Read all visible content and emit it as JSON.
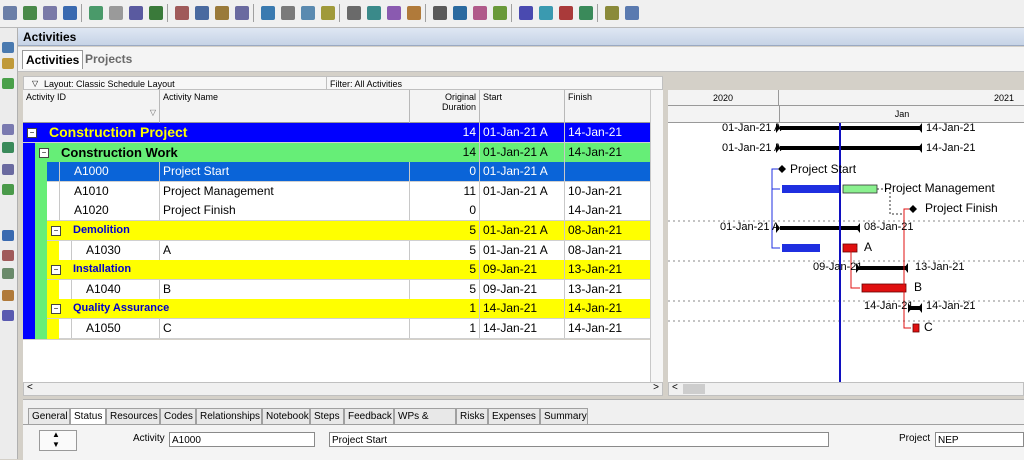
{
  "window": {
    "title": "Activities"
  },
  "view_tabs": [
    "Activities",
    "Projects"
  ],
  "layout_label": "Layout: Classic Schedule Layout",
  "filter_label": "Filter: All Activities",
  "columns": {
    "activity_id": "Activity ID",
    "activity_name": "Activity Name",
    "duration_1": "Original",
    "duration_2": "Duration",
    "start": "Start",
    "finish": "Finish"
  },
  "gantt_header": {
    "year_a": "2020",
    "year_b": "2021",
    "month": "Jan"
  },
  "rows": [
    {
      "kind": "wbs0",
      "name": "Construction Project",
      "duration": "14",
      "start": "01-Jan-21 A",
      "finish": "14-Jan-21"
    },
    {
      "kind": "wbs1",
      "name": "Construction Work",
      "duration": "14",
      "start": "01-Jan-21 A",
      "finish": "14-Jan-21"
    },
    {
      "kind": "act-sel",
      "id": "A1000",
      "name": "Project Start",
      "duration": "0",
      "start": "01-Jan-21 A",
      "finish": ""
    },
    {
      "kind": "act",
      "id": "A1010",
      "name": "Project Management",
      "duration": "11",
      "start": "01-Jan-21 A",
      "finish": "10-Jan-21"
    },
    {
      "kind": "act",
      "id": "A1020",
      "name": "Project Finish",
      "duration": "0",
      "start": "",
      "finish": "14-Jan-21"
    },
    {
      "kind": "wbs2",
      "name": "Demolition",
      "duration": "5",
      "start": "01-Jan-21 A",
      "finish": "08-Jan-21"
    },
    {
      "kind": "act2",
      "id": "A1030",
      "name": "A",
      "duration": "5",
      "start": "01-Jan-21 A",
      "finish": "08-Jan-21"
    },
    {
      "kind": "wbs2",
      "name": "Installation",
      "duration": "5",
      "start": "09-Jan-21",
      "finish": "13-Jan-21"
    },
    {
      "kind": "act2",
      "id": "A1040",
      "name": "B",
      "duration": "5",
      "start": "09-Jan-21",
      "finish": "13-Jan-21"
    },
    {
      "kind": "wbs2",
      "name": "Quality Assurance",
      "duration": "1",
      "start": "14-Jan-21",
      "finish": "14-Jan-21"
    },
    {
      "kind": "act2",
      "id": "A1050",
      "name": "C",
      "duration": "1",
      "start": "14-Jan-21",
      "finish": "14-Jan-21"
    }
  ],
  "gantt_labels": {
    "r0_left": "01-Jan-21 A",
    "r0_right": "14-Jan-21",
    "r1_left": "01-Jan-21 A",
    "r1_right": "14-Jan-21",
    "r2": "Project Start",
    "r3": "Project Management",
    "r4": "Project Finish",
    "r5_left": "01-Jan-21 A",
    "r5_right": "08-Jan-21",
    "r6": "A",
    "r7_left": "09-Jan-21",
    "r7_right": "13-Jan-21",
    "r8": "B",
    "r9_left": "14-Jan-21",
    "r9_right": "14-Jan-21",
    "r10": "C"
  },
  "bottom_tabs": [
    "General",
    "Status",
    "Resources",
    "Codes",
    "Relationships",
    "Notebook",
    "Steps",
    "Feedback",
    "WPs & Docs",
    "Risks",
    "Expenses",
    "Summary"
  ],
  "detail": {
    "activity_label": "Activity",
    "activity_id": "A1000",
    "activity_name": "Project Start",
    "project_label": "Project",
    "project_value": "NEP"
  },
  "colors": {
    "wbs0": "#0000ff",
    "wbs1": "#66ee77",
    "wbs2": "#ffff00",
    "selected": "#0a64d8",
    "bar_black": "#000000",
    "bar_blue": "#1f2fe0",
    "bar_green": "#8af08f",
    "bar_red": "#e01010",
    "datadate": "#1010c0"
  }
}
